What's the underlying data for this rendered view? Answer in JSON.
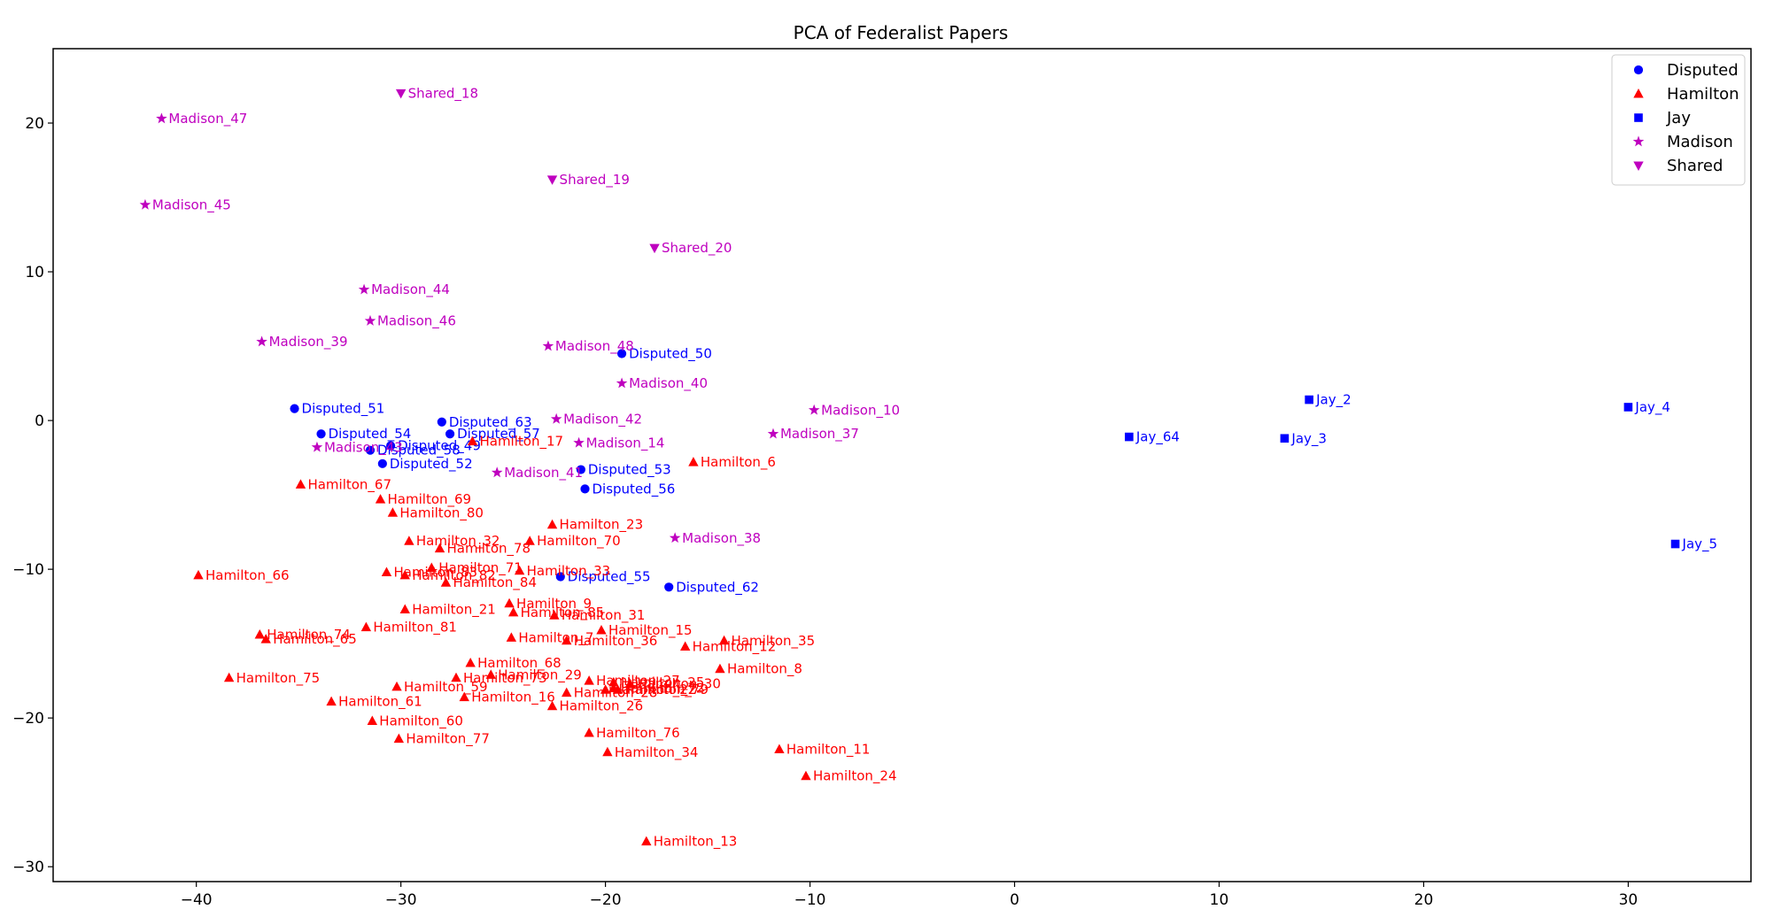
{
  "chart_data": {
    "type": "scatter",
    "title": "PCA of Federalist Papers",
    "xlabel": "",
    "ylabel": "",
    "xlim": [
      -47,
      36
    ],
    "ylim": [
      -31,
      25
    ],
    "x_ticks": [
      -40,
      -30,
      -20,
      -10,
      0,
      10,
      20,
      30
    ],
    "y_ticks": [
      -30,
      -20,
      -10,
      0,
      10,
      20
    ],
    "x_tick_labels": [
      "−40",
      "−30",
      "−20",
      "−10",
      "0",
      "10",
      "20",
      "30"
    ],
    "y_tick_labels": [
      "−30",
      "−20",
      "−10",
      "0",
      "10",
      "20"
    ],
    "grid": false,
    "legend_position": "top-right",
    "series": [
      {
        "name": "Disputed",
        "color": "#0000ff",
        "marker": "circle",
        "points": [
          {
            "label": "Disputed_49",
            "x": -30.5,
            "y": -1.7
          },
          {
            "label": "Disputed_50",
            "x": -19.2,
            "y": 4.5
          },
          {
            "label": "Disputed_51",
            "x": -35.2,
            "y": 0.8
          },
          {
            "label": "Disputed_52",
            "x": -30.9,
            "y": -2.9
          },
          {
            "label": "Disputed_53",
            "x": -21.2,
            "y": -3.3
          },
          {
            "label": "Disputed_54",
            "x": -33.9,
            "y": -0.9
          },
          {
            "label": "Disputed_55",
            "x": -22.2,
            "y": -10.5
          },
          {
            "label": "Disputed_56",
            "x": -21.0,
            "y": -4.6
          },
          {
            "label": "Disputed_57",
            "x": -27.6,
            "y": -0.9
          },
          {
            "label": "Disputed_58",
            "x": -31.5,
            "y": -2.0
          },
          {
            "label": "Disputed_62",
            "x": -16.9,
            "y": -11.2
          },
          {
            "label": "Disputed_63",
            "x": -28.0,
            "y": -0.1
          }
        ]
      },
      {
        "name": "Hamilton",
        "color": "#ff0000",
        "marker": "triangle-up",
        "points": [
          {
            "label": "Hamilton_6",
            "x": -15.7,
            "y": -2.8
          },
          {
            "label": "Hamilton_7",
            "x": -24.6,
            "y": -14.6
          },
          {
            "label": "Hamilton_8",
            "x": -14.4,
            "y": -16.7
          },
          {
            "label": "Hamilton_9",
            "x": -24.7,
            "y": -12.3
          },
          {
            "label": "Hamilton_11",
            "x": -11.5,
            "y": -22.1
          },
          {
            "label": "Hamilton_12",
            "x": -16.1,
            "y": -15.2
          },
          {
            "label": "Hamilton_13",
            "x": -18.0,
            "y": -28.3
          },
          {
            "label": "Hamilton_15",
            "x": -20.2,
            "y": -14.1
          },
          {
            "label": "Hamilton_16",
            "x": -26.9,
            "y": -18.6
          },
          {
            "label": "Hamilton_17",
            "x": -26.5,
            "y": -1.4
          },
          {
            "label": "Hamilton_21",
            "x": -29.8,
            "y": -12.7
          },
          {
            "label": "Hamilton_22",
            "x": -20.0,
            "y": -18.1
          },
          {
            "label": "Hamilton_23",
            "x": -22.6,
            "y": -7.0
          },
          {
            "label": "Hamilton_24",
            "x": -10.2,
            "y": -23.9
          },
          {
            "label": "Hamilton_25",
            "x": -19.6,
            "y": -17.6
          },
          {
            "label": "Hamilton_26",
            "x": -22.6,
            "y": -19.2
          },
          {
            "label": "Hamilton_27",
            "x": -20.8,
            "y": -17.5
          },
          {
            "label": "Hamilton_28",
            "x": -21.9,
            "y": -18.3
          },
          {
            "label": "Hamilton_29",
            "x": -25.6,
            "y": -17.1
          },
          {
            "label": "Hamilton_30",
            "x": -18.8,
            "y": -17.7
          },
          {
            "label": "Hamilton_31",
            "x": -22.5,
            "y": -13.1
          },
          {
            "label": "Hamilton_32",
            "x": -29.6,
            "y": -8.1
          },
          {
            "label": "Hamilton_33",
            "x": -24.2,
            "y": -10.1
          },
          {
            "label": "Hamilton_34",
            "x": -19.9,
            "y": -22.3
          },
          {
            "label": "Hamilton_35",
            "x": -14.2,
            "y": -14.8
          },
          {
            "label": "Hamilton_36",
            "x": -21.9,
            "y": -14.8
          },
          {
            "label": "Hamilton_59",
            "x": -30.2,
            "y": -17.9
          },
          {
            "label": "Hamilton_60",
            "x": -31.4,
            "y": -20.2
          },
          {
            "label": "Hamilton_61",
            "x": -33.4,
            "y": -18.9
          },
          {
            "label": "Hamilton_65",
            "x": -36.6,
            "y": -14.7
          },
          {
            "label": "Hamilton_66",
            "x": -39.9,
            "y": -10.4
          },
          {
            "label": "Hamilton_67",
            "x": -34.9,
            "y": -4.3
          },
          {
            "label": "Hamilton_68",
            "x": -26.6,
            "y": -16.3
          },
          {
            "label": "Hamilton_69",
            "x": -31.0,
            "y": -5.3
          },
          {
            "label": "Hamilton_70",
            "x": -23.7,
            "y": -8.1
          },
          {
            "label": "Hamilton_71",
            "x": -28.5,
            "y": -9.9
          },
          {
            "label": "Hamilton_72",
            "x": -19.6,
            "y": -18.0
          },
          {
            "label": "Hamilton_73",
            "x": -27.3,
            "y": -17.3
          },
          {
            "label": "Hamilton_74",
            "x": -36.9,
            "y": -14.4
          },
          {
            "label": "Hamilton_75",
            "x": -38.4,
            "y": -17.3
          },
          {
            "label": "Hamilton_76",
            "x": -20.8,
            "y": -21.0
          },
          {
            "label": "Hamilton_77",
            "x": -30.1,
            "y": -21.4
          },
          {
            "label": "Hamilton_78",
            "x": -28.1,
            "y": -8.6
          },
          {
            "label": "Hamilton_79",
            "x": -19.4,
            "y": -18.1
          },
          {
            "label": "Hamilton_80",
            "x": -30.4,
            "y": -6.2
          },
          {
            "label": "Hamilton_81",
            "x": -31.7,
            "y": -13.9
          },
          {
            "label": "Hamilton_82",
            "x": -29.8,
            "y": -10.4
          },
          {
            "label": "Hamilton_83",
            "x": -30.7,
            "y": -10.2
          },
          {
            "label": "Hamilton_84",
            "x": -27.8,
            "y": -10.9
          },
          {
            "label": "Hamilton_85",
            "x": -24.5,
            "y": -12.9
          }
        ]
      },
      {
        "name": "Jay",
        "color": "#0000ff",
        "marker": "square",
        "points": [
          {
            "label": "Jay_2",
            "x": 14.4,
            "y": 1.4
          },
          {
            "label": "Jay_3",
            "x": 13.2,
            "y": -1.2
          },
          {
            "label": "Jay_4",
            "x": 30.0,
            "y": 0.9
          },
          {
            "label": "Jay_5",
            "x": 32.3,
            "y": -8.3
          },
          {
            "label": "Jay_64",
            "x": 5.6,
            "y": -1.1
          }
        ]
      },
      {
        "name": "Madison",
        "color": "#bf00bf",
        "marker": "star",
        "points": [
          {
            "label": "Madison_10",
            "x": -9.8,
            "y": 0.7
          },
          {
            "label": "Madison_14",
            "x": -21.3,
            "y": -1.5
          },
          {
            "label": "Madison_37",
            "x": -11.8,
            "y": -0.9
          },
          {
            "label": "Madison_38",
            "x": -16.6,
            "y": -7.9
          },
          {
            "label": "Madison_39",
            "x": -36.8,
            "y": 5.3
          },
          {
            "label": "Madison_40",
            "x": -19.2,
            "y": 2.5
          },
          {
            "label": "Madison_41",
            "x": -25.3,
            "y": -3.5
          },
          {
            "label": "Madison_42",
            "x": -22.4,
            "y": 0.1
          },
          {
            "label": "Madison_43",
            "x": -34.1,
            "y": -1.8
          },
          {
            "label": "Madison_44",
            "x": -31.8,
            "y": 8.8
          },
          {
            "label": "Madison_45",
            "x": -42.5,
            "y": 14.5
          },
          {
            "label": "Madison_46",
            "x": -31.5,
            "y": 6.7
          },
          {
            "label": "Madison_47",
            "x": -41.7,
            "y": 20.3
          },
          {
            "label": "Madison_48",
            "x": -22.8,
            "y": 5.0
          }
        ]
      },
      {
        "name": "Shared",
        "color": "#bf00bf",
        "marker": "triangle-down",
        "points": [
          {
            "label": "Shared_18",
            "x": -30.0,
            "y": 22.0
          },
          {
            "label": "Shared_19",
            "x": -22.6,
            "y": 16.2
          },
          {
            "label": "Shared_20",
            "x": -17.6,
            "y": 11.6
          }
        ]
      }
    ]
  }
}
